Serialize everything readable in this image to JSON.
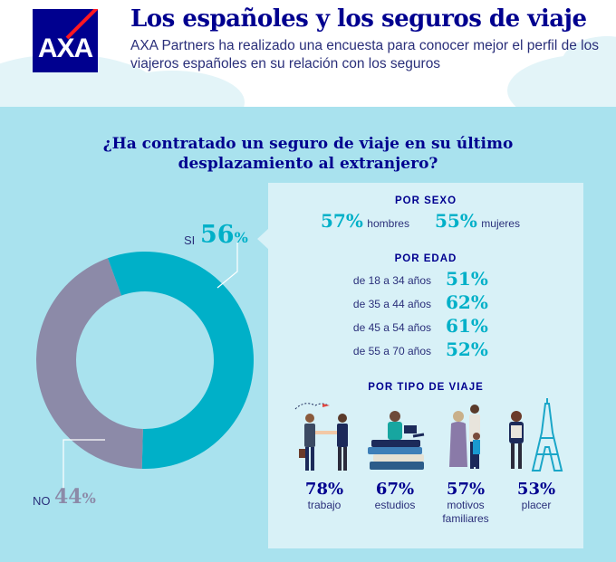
{
  "header": {
    "title": "Los españoles y los seguros de viaje",
    "subtitle": "AXA Partners ha realizado una encuesta para conocer mejor el perfil de los viajeros españoles en su relación con los seguros",
    "logo_text": "AXA"
  },
  "chart_data": {
    "type": "pie",
    "title": "¿Ha contratado un seguro de viaje en su último desplazamiento al extranjero?",
    "slices": [
      {
        "label": "SI",
        "value": 56,
        "display": "56",
        "unit": "%",
        "color": "#00b0c8"
      },
      {
        "label": "NO",
        "value": 44,
        "display": "44",
        "unit": "%",
        "color": "#8c8aa8"
      }
    ]
  },
  "breakdown": {
    "sexo": {
      "heading": "POR SEXO",
      "items": [
        {
          "value": "57%",
          "label": "hombres"
        },
        {
          "value": "55%",
          "label": "mujeres"
        }
      ]
    },
    "edad": {
      "heading": "POR EDAD",
      "items": [
        {
          "label": "de 18 a 34 años",
          "value": "51%"
        },
        {
          "label": "de 35 a 44 años",
          "value": "62%"
        },
        {
          "label": "de 45 a 54 años",
          "value": "61%"
        },
        {
          "label": "de 55 a 70 años",
          "value": "52%"
        }
      ]
    },
    "viaje": {
      "heading": "POR TIPO DE VIAJE",
      "items": [
        {
          "value": "78%",
          "label": "trabajo",
          "icon": "business-handshake-icon"
        },
        {
          "value": "67%",
          "label": "estudios",
          "icon": "student-books-icon"
        },
        {
          "value": "57%",
          "label": "motivos familiares",
          "icon": "family-icon"
        },
        {
          "value": "53%",
          "label": "placer",
          "icon": "eiffel-tower-tourist-icon"
        }
      ]
    }
  }
}
